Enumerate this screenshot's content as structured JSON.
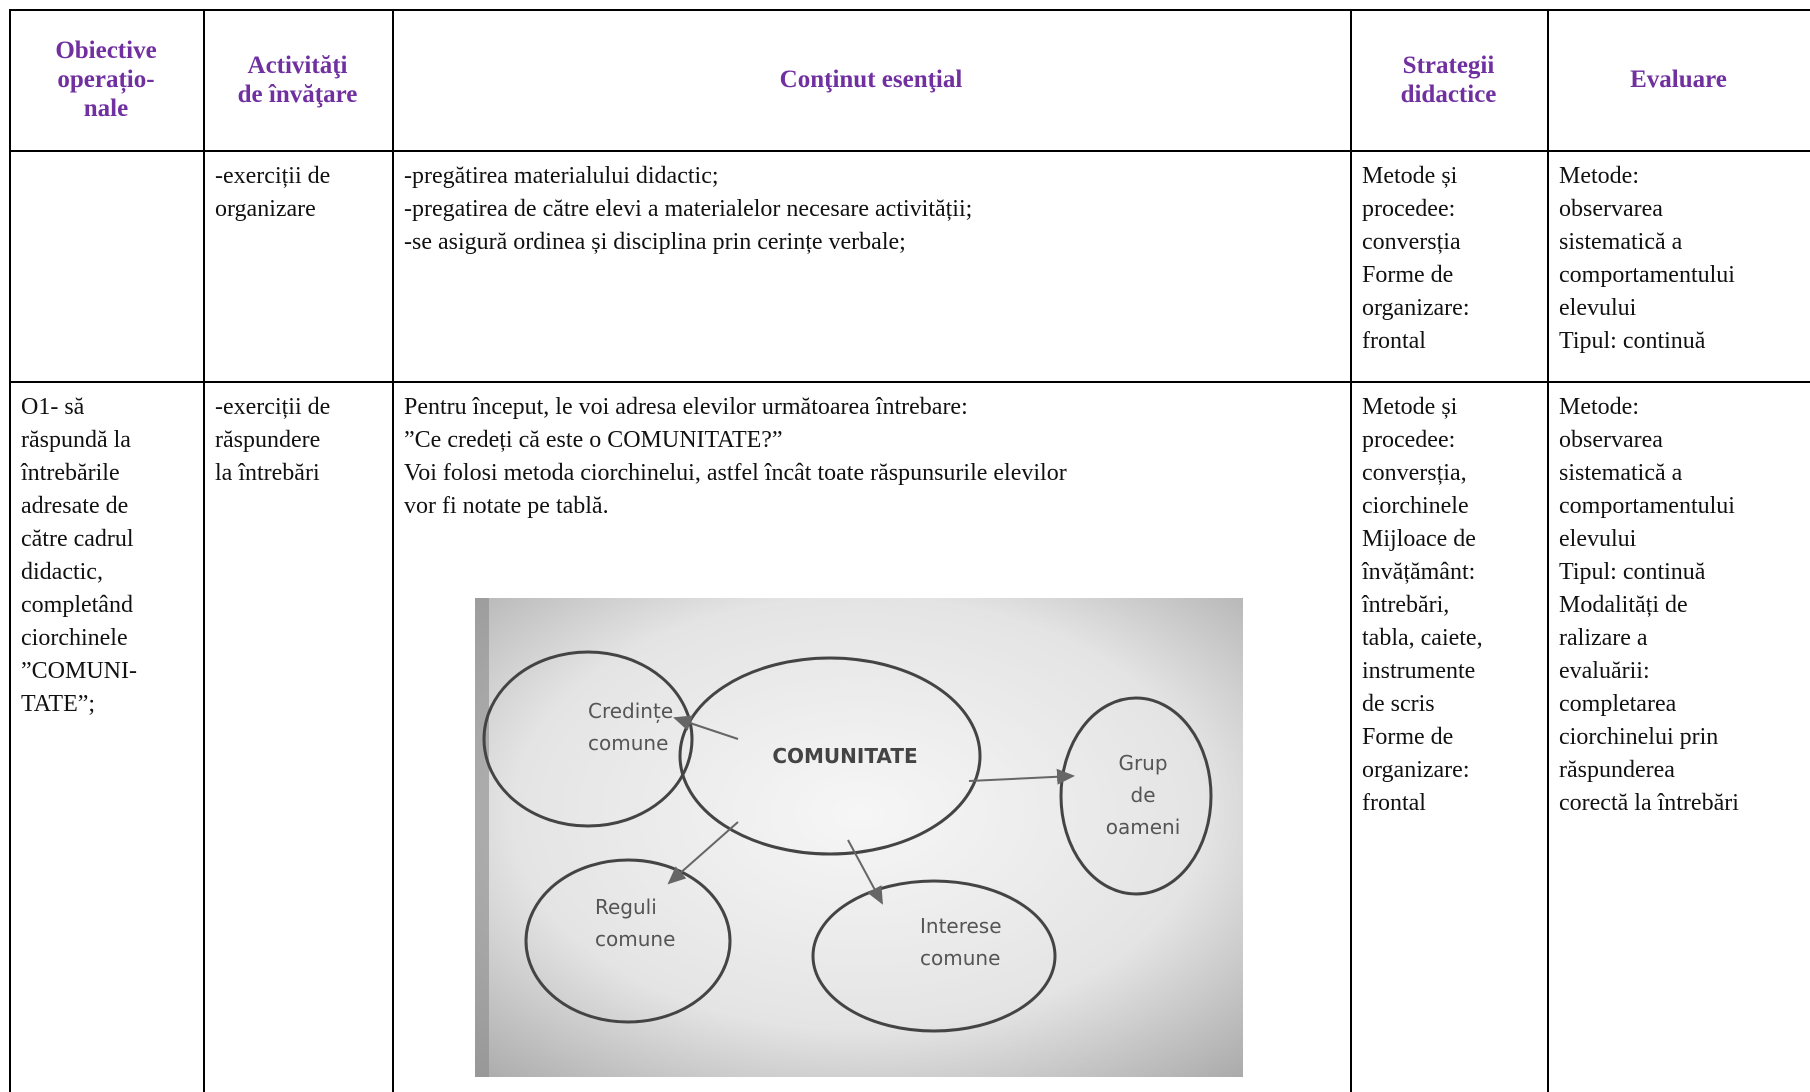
{
  "table": {
    "header": [
      [
        "Obiective",
        "operațio-",
        "nale"
      ],
      [
        "Activităţi",
        "de învăţare"
      ],
      [
        "Conţinut esenţial"
      ],
      [
        "Strategii",
        "didactice"
      ],
      [
        "Evaluare"
      ]
    ],
    "rows": [
      [
        [],
        [
          "-exerciții de",
          "organizare"
        ],
        [
          "-pregătirea materialului didactic;",
          "-pregatirea de către elevi a materialelor necesare activității;",
          "-se asigură ordinea și disciplina prin cerințe verbale;"
        ],
        [
          "Metode și",
          "procedee:",
          "conversția",
          "Forme de",
          "organizare:",
          "frontal"
        ],
        [
          "Metode:",
          "observarea",
          "sistematică a",
          "comportamentului",
          "elevului",
          "Tipul: continuă"
        ]
      ],
      [
        [
          "O1- să",
          "răspundă la",
          "întrebările",
          "adresate de",
          "către cadrul",
          "didactic,",
          "completând",
          "ciorchinele",
          "”COMUNI-",
          "TATE”;"
        ],
        [
          "-exerciții de",
          "răspundere",
          "la întrebări"
        ],
        [
          "Pentru început, le voi adresa elevilor următoarea întrebare:",
          "”Ce credeți că este o COMUNITATE?”",
          "Voi folosi metoda ciorchinelui, astfel încât toate răspunsurile elevilor",
          "vor fi notate pe tablă."
        ],
        [
          "Metode și",
          "procedee:",
          "conversția,",
          "ciorchinele",
          "Mijloace de",
          "învățământ:",
          "întrebări,",
          "tabla, caiete,",
          "instrumente",
          "de scris",
          "Forme de",
          "organizare:",
          "frontal"
        ],
        [
          "Metode:",
          "observarea",
          "sistematică a",
          "comportamentului",
          "elevului",
          "Tipul: continuă",
          "Modalități de",
          "ralizare a",
          "evaluării:",
          "completarea",
          "ciorchinelui prin",
          "răspunderea",
          "corectă la întrebări"
        ]
      ]
    ]
  },
  "diagram": {
    "center": "COMUNITATE",
    "nodes": [
      [
        "Credințe",
        "comune"
      ],
      [
        "Grup",
        "de",
        "oameni"
      ],
      [
        "Reguli",
        "comune"
      ],
      [
        "Interese",
        "comune"
      ]
    ]
  }
}
